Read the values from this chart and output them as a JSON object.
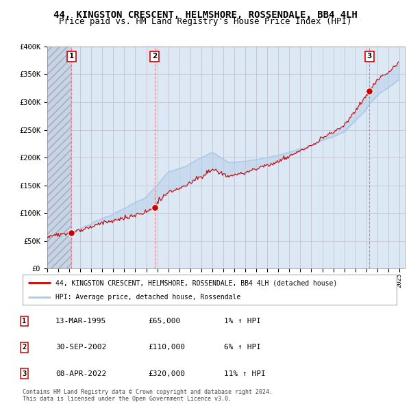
{
  "title": "44, KINGSTON CRESCENT, HELMSHORE, ROSSENDALE, BB4 4LH",
  "subtitle": "Price paid vs. HM Land Registry's House Price Index (HPI)",
  "ylim": [
    0,
    400000
  ],
  "yticks": [
    0,
    50000,
    100000,
    150000,
    200000,
    250000,
    300000,
    350000,
    400000
  ],
  "ytick_labels": [
    "£0",
    "£50K",
    "£100K",
    "£150K",
    "£200K",
    "£250K",
    "£300K",
    "£350K",
    "£400K"
  ],
  "xlim_start": 1993.0,
  "xlim_end": 2025.5,
  "sales": [
    {
      "num": 1,
      "date": "13-MAR-1995",
      "year": 1995.2,
      "price": 65000,
      "hpi_pct": "1%"
    },
    {
      "num": 2,
      "date": "30-SEP-2002",
      "year": 2002.75,
      "price": 110000,
      "hpi_pct": "6%"
    },
    {
      "num": 3,
      "date": "08-APR-2022",
      "year": 2022.27,
      "price": 320000,
      "hpi_pct": "11%"
    }
  ],
  "legend_property": "44, KINGSTON CRESCENT, HELMSHORE, ROSSENDALE, BB4 4LH (detached house)",
  "legend_hpi": "HPI: Average price, detached house, Rossendale",
  "footnote": "Contains HM Land Registry data © Crown copyright and database right 2024.\nThis data is licensed under the Open Government Licence v3.0.",
  "property_color": "#cc0000",
  "hpi_color": "#aac8e8",
  "background_plot": "#dde8f5",
  "grid_color": "#bbbbcc",
  "sale_box_color": "#cc0000",
  "title_fontsize": 10,
  "subtitle_fontsize": 9
}
